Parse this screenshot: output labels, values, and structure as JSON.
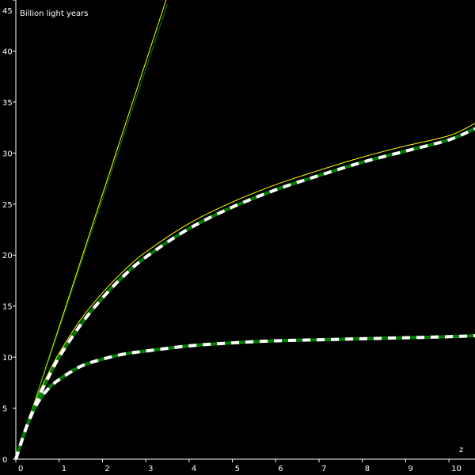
{
  "chart_data": {
    "type": "line",
    "ylabel": "Billion light years",
    "xlabel": "z",
    "xlim": [
      0,
      10.6
    ],
    "ylim": [
      0,
      45
    ],
    "x_ticks": [
      0,
      1,
      2,
      3,
      4,
      5,
      6,
      7,
      8,
      9,
      10
    ],
    "y_ticks": [
      0,
      5,
      10,
      15,
      20,
      25,
      30,
      35,
      40,
      45
    ],
    "grid": false,
    "background": "#000000",
    "axis_color": "#ffffff",
    "series": [
      {
        "style": "solid-yellow",
        "color": "#ffff00",
        "x": [
          0,
          3.5
        ],
        "y": [
          0,
          45.4
        ]
      },
      {
        "style": "solid-green",
        "color": "#008000",
        "x": [
          0,
          3.5
        ],
        "y": [
          0,
          44.6
        ]
      },
      {
        "style": "solid-yellow",
        "color": "#ffff00",
        "x": [
          0,
          0.25,
          0.5,
          0.75,
          1,
          1.5,
          2,
          2.5,
          3,
          4,
          5,
          6,
          7,
          8,
          9,
          10,
          10.6
        ],
        "y": [
          0,
          3.5,
          6.2,
          8.4,
          10.4,
          13.7,
          16.3,
          18.5,
          20.3,
          23.1,
          25.2,
          26.9,
          28.3,
          29.6,
          30.7,
          31.7,
          32.9
        ]
      },
      {
        "style": "dashed-white-green",
        "color": "#ffffff",
        "color2": "#008000",
        "x": [
          0,
          0.25,
          0.5,
          0.75,
          1,
          1.5,
          2,
          2.5,
          3,
          4,
          5,
          6,
          7,
          8,
          9,
          10,
          10.6
        ],
        "y": [
          0,
          3.2,
          5.8,
          8.0,
          10.0,
          13.2,
          15.8,
          18.0,
          19.8,
          22.6,
          24.7,
          26.4,
          27.8,
          29.1,
          30.2,
          31.3,
          32.4
        ]
      },
      {
        "style": "solid-yellow",
        "color": "#ffff00",
        "x": [
          0,
          0.25,
          0.5,
          0.75,
          1,
          1.5,
          2,
          2.5,
          3,
          4,
          5,
          6,
          7,
          8,
          9,
          10,
          10.6
        ],
        "y": [
          0,
          3.4,
          5.6,
          6.9,
          7.8,
          9.0,
          9.8,
          10.3,
          10.6,
          11.0,
          11.3,
          11.5,
          11.7,
          11.8,
          11.9,
          12.0,
          12.0
        ]
      },
      {
        "style": "dashed-white-green",
        "color": "#ffffff",
        "color2": "#008000",
        "x": [
          0,
          0.25,
          0.5,
          0.75,
          1,
          1.5,
          2,
          2.5,
          3,
          4,
          5,
          6,
          7,
          8,
          9,
          10,
          10.6
        ],
        "y": [
          0,
          3.2,
          5.5,
          6.9,
          7.8,
          9.1,
          9.8,
          10.3,
          10.6,
          11.1,
          11.4,
          11.6,
          11.7,
          11.8,
          11.9,
          12.0,
          12.1
        ]
      }
    ]
  }
}
